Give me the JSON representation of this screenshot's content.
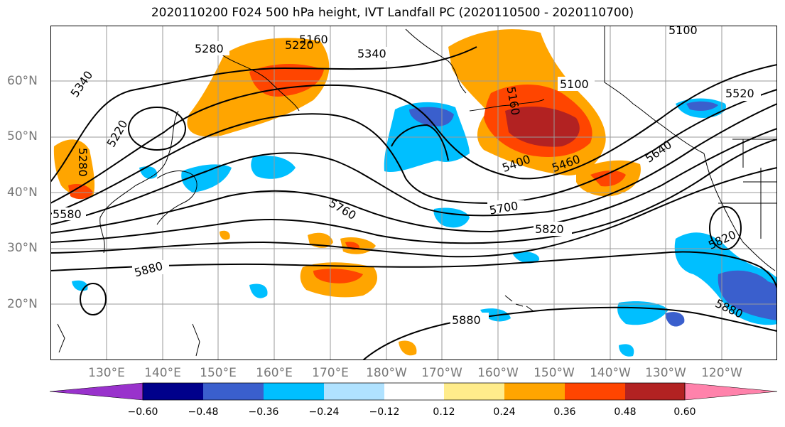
{
  "title": "2020110200 F024 500 hPa height, IVT Landfall PC (2020110500 - 2020110700)",
  "lat_labels": [
    "60°N",
    "50°N",
    "40°N",
    "30°N",
    "20°N"
  ],
  "lon_labels": [
    "130°E",
    "140°E",
    "150°E",
    "160°E",
    "170°E",
    "180°W",
    "170°W",
    "160°W",
    "150°W",
    "140°W",
    "130°W",
    "120°W"
  ],
  "contour_labels": [
    "5280",
    "5220",
    "5160",
    "5340",
    "5100",
    "5340",
    "5280",
    "5220",
    "5100",
    "5520",
    "5400",
    "5460",
    "5640",
    "5580",
    "5760",
    "5700",
    "5820",
    "5880",
    "5820",
    "5880",
    "5880",
    "5160"
  ],
  "colorbar": {
    "ticks": [
      "−0.60",
      "−0.48",
      "−0.36",
      "−0.24",
      "−0.12",
      "0.12",
      "0.24",
      "0.36",
      "0.48",
      "0.60"
    ],
    "colors": [
      "#9932cc",
      "#00008b",
      "#3a5fcd",
      "#00bfff",
      "#b0e2ff",
      "#ffffff",
      "#ffec8b",
      "#ffa500",
      "#ff4500",
      "#b22222",
      "#ff82ab"
    ]
  },
  "legend_colors": {
    "orange": "#ffa500",
    "red": "#ff4500",
    "darkred": "#b22222",
    "yellow": "#ffec8b",
    "lightblue": "#b0e2ff",
    "cyan": "#00bfff",
    "royal": "#3a5fcd"
  }
}
